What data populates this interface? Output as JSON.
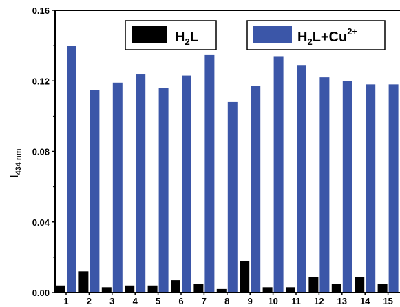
{
  "chart_data": {
    "type": "bar",
    "ylabel": "I",
    "ylabel_sub": "434 nm",
    "ylim": [
      0,
      0.16
    ],
    "yticks": [
      "0.00",
      "0.04",
      "0.08",
      "0.12",
      "0.16"
    ],
    "ytick_values": [
      0,
      0.04,
      0.08,
      0.12,
      0.16
    ],
    "categories": [
      "1",
      "2",
      "3",
      "4",
      "5",
      "6",
      "7",
      "8",
      "9",
      "10",
      "11",
      "12",
      "13",
      "14",
      "15"
    ],
    "legend_position": "top",
    "series": [
      {
        "name_main": "H",
        "name_sub": "2",
        "name_tail": "L",
        "color": "#000000",
        "values": [
          0.004,
          0.012,
          0.003,
          0.004,
          0.004,
          0.007,
          0.005,
          0.002,
          0.018,
          0.003,
          0.003,
          0.009,
          0.005,
          0.009,
          0.005
        ]
      },
      {
        "name_main": "H",
        "name_sub": "2",
        "name_tail": "L+Cu",
        "name_sup": "2+",
        "color": "#3b56a8",
        "values": [
          0.14,
          0.115,
          0.119,
          0.124,
          0.116,
          0.123,
          0.135,
          0.108,
          0.117,
          0.134,
          0.129,
          0.122,
          0.12,
          0.118,
          0.118
        ]
      }
    ]
  }
}
